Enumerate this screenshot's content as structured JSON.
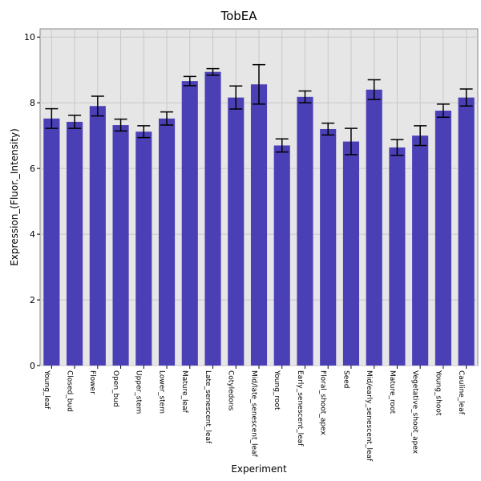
{
  "chart_data": {
    "type": "bar",
    "title": "TobEA",
    "xlabel": "Experiment",
    "ylabel": "Expression_(Fluor._Intensity)",
    "ylim": [
      0,
      10.25
    ],
    "yticks": [
      0,
      2,
      4,
      6,
      8,
      10
    ],
    "grid": true,
    "bar_color": "#4b3fb6",
    "plot_bg": "#e6e6e6",
    "grid_color": "#c8c8c8",
    "categories": [
      "Young_leaf",
      "Closed_bud",
      "Flower",
      "Open_bud",
      "Upper_stem",
      "Lower_stem",
      "Mature_leaf",
      "Late_senescent_leaf",
      "Cotyledons",
      "Mid/late_senescent_leaf",
      "Young_root",
      "Early_senescent_leaf",
      "Floral_shoot_apex",
      "Seed",
      "Mid/early_senescent_leaf",
      "Mature_root",
      "Vegetative_shoot_apex",
      "Young_shoot",
      "Cauline_leaf"
    ],
    "values": [
      7.52,
      7.42,
      7.9,
      7.32,
      7.12,
      7.52,
      8.66,
      8.94,
      8.16,
      8.56,
      6.7,
      8.18,
      7.2,
      6.82,
      8.4,
      6.64,
      7.0,
      7.76,
      8.16
    ],
    "errors": [
      0.3,
      0.2,
      0.3,
      0.18,
      0.18,
      0.2,
      0.14,
      0.1,
      0.35,
      0.6,
      0.2,
      0.18,
      0.18,
      0.4,
      0.3,
      0.24,
      0.3,
      0.2,
      0.26
    ]
  }
}
